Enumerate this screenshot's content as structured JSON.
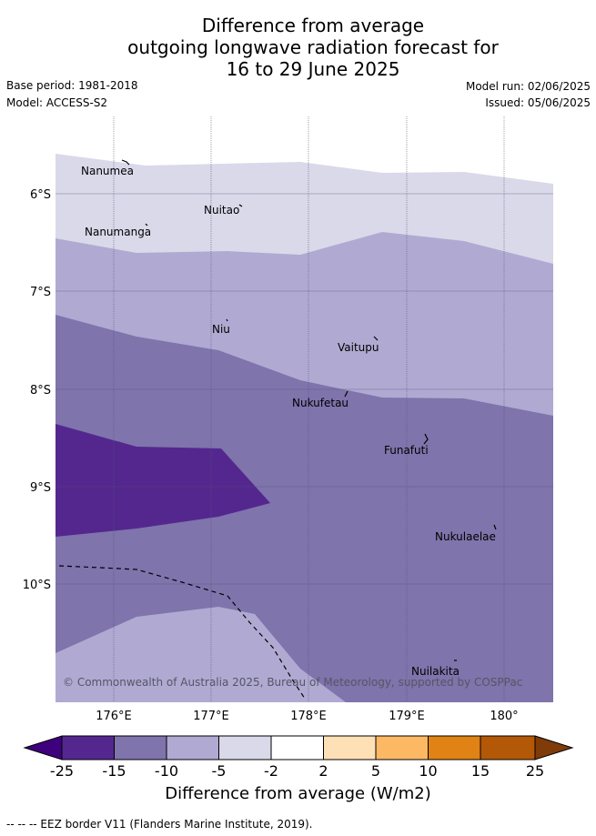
{
  "header": {
    "title_line1": "Difference from average",
    "title_line2": "outgoing longwave radiation forecast for",
    "title_line3": "16 to 29 June 2025",
    "base_period": "Base period: 1981-2018",
    "model": "Model: ACCESS-S2",
    "model_run": "Model run: 02/06/2025",
    "issued": "Issued: 05/06/2025"
  },
  "map": {
    "lon_range": [
      175.5,
      180.5
    ],
    "lat_range": [
      -11.2,
      -5.2
    ],
    "lon_ticks": [
      "176°E",
      "177°E",
      "178°E",
      "179°E",
      "180°"
    ],
    "lat_ticks": [
      "6°S",
      "7°S",
      "8°S",
      "9°S",
      "10°S"
    ],
    "gridlines": true,
    "places": [
      {
        "name": "Nanumea"
      },
      {
        "name": "Nuitao"
      },
      {
        "name": "Nanumanga"
      },
      {
        "name": "Niu"
      },
      {
        "name": "Vaitupu"
      },
      {
        "name": "Nukufetau"
      },
      {
        "name": "Funafuti"
      },
      {
        "name": "Nukulaelae"
      },
      {
        "name": "Nuilakita"
      }
    ],
    "copyright": "© Commonwealth of Australia 2025, Bureau of Meteorology, supported by COSPPac",
    "colors": {
      "less_than_-15": "#54278f",
      "-15_to_-10": "#7f74ab",
      "-10_to_-5": "#b0aad2",
      "-5_to_-2": "#d9d9ea",
      "-2_to_2": "#ffffff"
    }
  },
  "colorbar": {
    "ticks": [
      "-25",
      "-15",
      "-10",
      "-5",
      "-2",
      "2",
      "5",
      "10",
      "15",
      "25"
    ],
    "colors": [
      "#3f007d",
      "#54278f",
      "#7f74ab",
      "#b0aad2",
      "#d9d9ea",
      "#ffffff",
      "#fee0b6",
      "#fdb863",
      "#e08214",
      "#b35806",
      "#7f3b08"
    ],
    "label": "Difference from average (W/m2)"
  },
  "footnote": "-- -- -- EEZ border V11 (Flanders Marine Institute, 2019)."
}
